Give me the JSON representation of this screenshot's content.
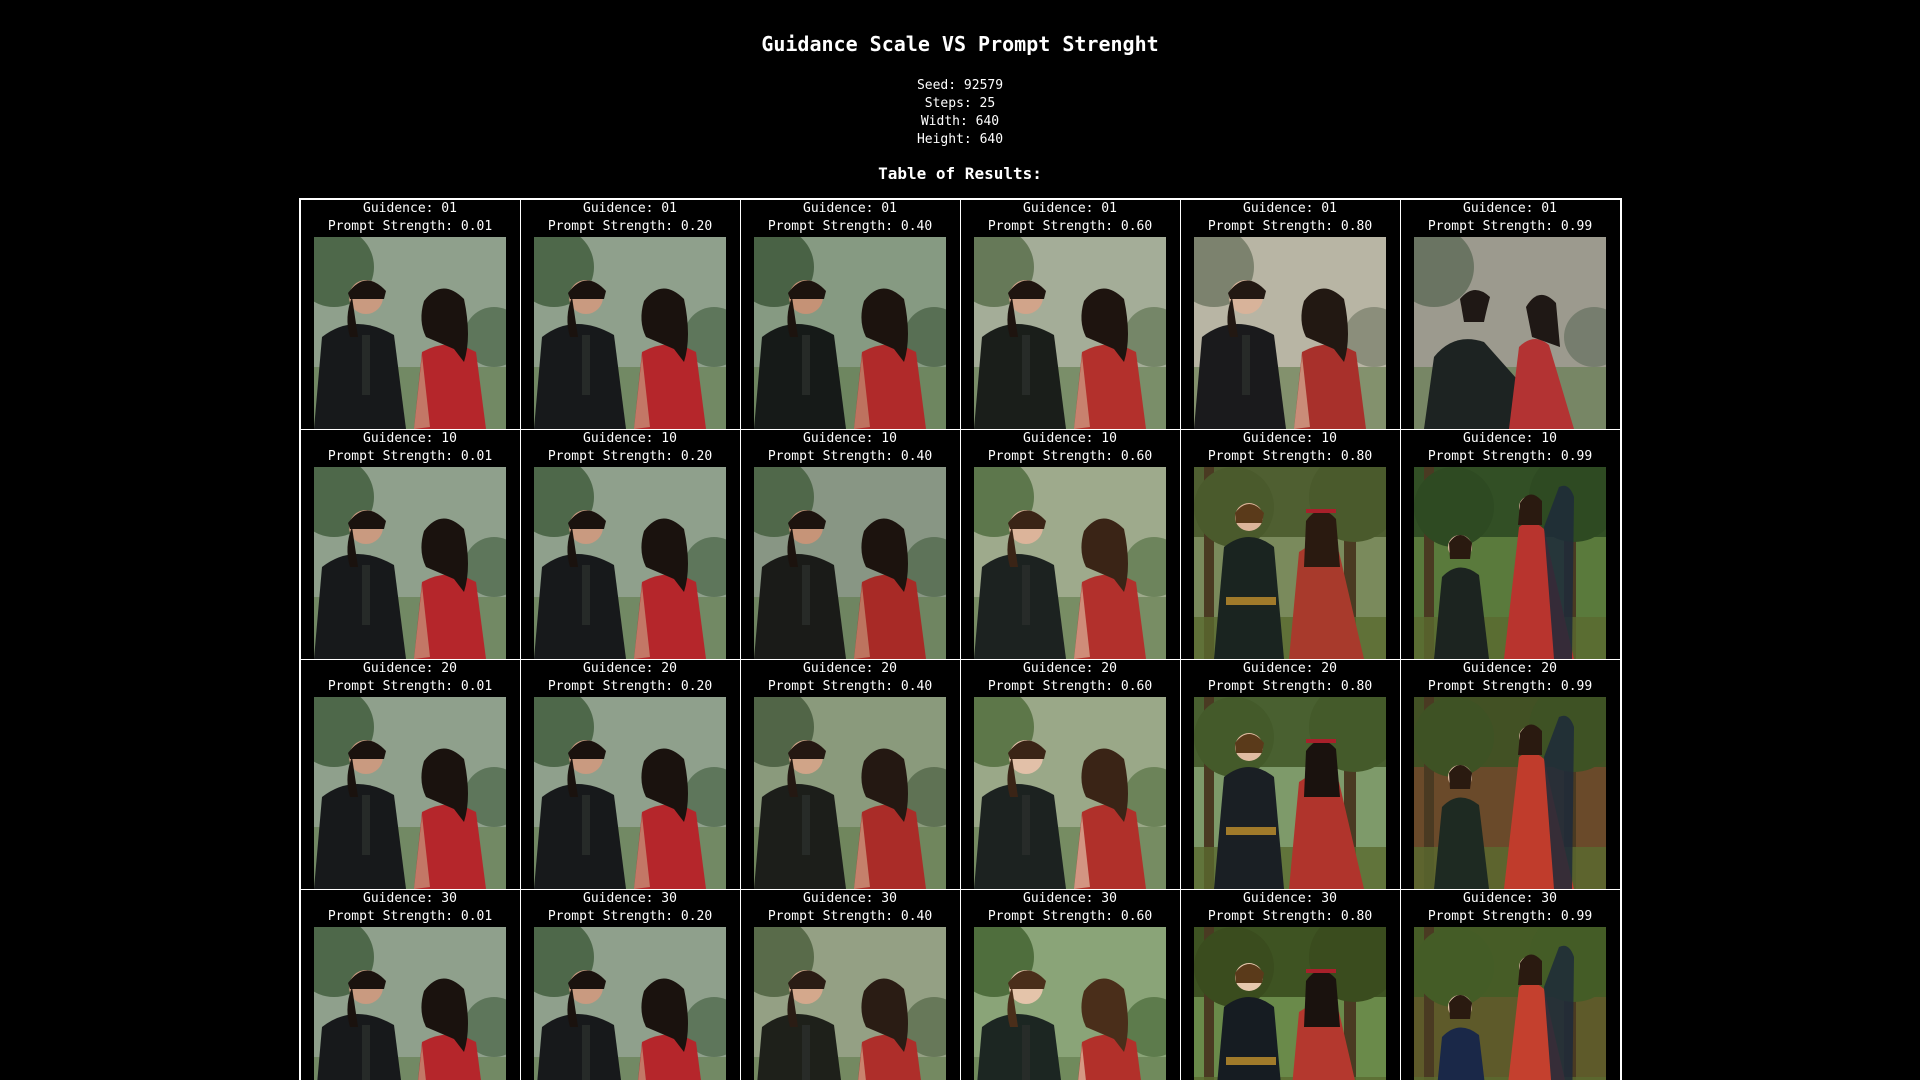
{
  "title": "Guidance Scale VS Prompt Strenght",
  "meta": {
    "seed": "Seed: 92579",
    "steps": "Steps: 25",
    "width": "Width: 640",
    "height": "Height: 640"
  },
  "table_title": "Table of Results:",
  "rows": [
    {
      "guidance_label": "Guidence: 01",
      "cells": [
        {
          "prompt_label": "Prompt Strength: 0.01",
          "style": "photo",
          "bg": "#8fa08c",
          "trees": "#3d5a3a",
          "man_coat": "#17191b",
          "dress": "#b5262b",
          "skin": "#c99a80",
          "hair": "#1a120e"
        },
        {
          "prompt_label": "Prompt Strength: 0.20",
          "style": "photo",
          "bg": "#8fa08c",
          "trees": "#3d5a3a",
          "man_coat": "#17191b",
          "dress": "#b5262b",
          "skin": "#c99a80",
          "hair": "#1a120e"
        },
        {
          "prompt_label": "Prompt Strength: 0.40",
          "style": "photo",
          "bg": "#869a82",
          "trees": "#3a5436",
          "man_coat": "#161a18",
          "dress": "#b02a2a",
          "skin": "#c59276",
          "hair": "#1c130e"
        },
        {
          "prompt_label": "Prompt Strength: 0.60",
          "style": "photo",
          "bg": "#a4ad98",
          "trees": "#566c48",
          "man_coat": "#1a1e1a",
          "dress": "#b3302c",
          "skin": "#d1a48a",
          "hair": "#1e140f"
        },
        {
          "prompt_label": "Prompt Strength: 0.80",
          "style": "painted",
          "bg": "#b8b5a4",
          "trees": "#6d7560",
          "man_coat": "#1a1a1c",
          "dress": "#a8302b",
          "skin": "#d8b39a",
          "hair": "#221812"
        },
        {
          "prompt_label": "Prompt Strength: 0.99",
          "style": "seated",
          "bg": "#9c9a8e",
          "trees": "#5e6a58",
          "man_coat": "#1d2322",
          "dress": "#b33333",
          "skin": "#d3ad96",
          "hair": "#1f1815"
        }
      ]
    },
    {
      "guidance_label": "Guidence: 10",
      "cells": [
        {
          "prompt_label": "Prompt Strength: 0.01",
          "style": "photo",
          "bg": "#8fa08c",
          "trees": "#3d5a3a",
          "man_coat": "#17191b",
          "dress": "#b5262b",
          "skin": "#c99a80",
          "hair": "#1a120e"
        },
        {
          "prompt_label": "Prompt Strength: 0.20",
          "style": "photo",
          "bg": "#8fa08c",
          "trees": "#3d5a3a",
          "man_coat": "#17191b",
          "dress": "#b5262b",
          "skin": "#c99a80",
          "hair": "#1a120e"
        },
        {
          "prompt_label": "Prompt Strength: 0.40",
          "style": "photo",
          "bg": "#889684",
          "trees": "#425c3c",
          "man_coat": "#1a1b18",
          "dress": "#a82a26",
          "skin": "#c69478",
          "hair": "#1c130e"
        },
        {
          "prompt_label": "Prompt Strength: 0.60",
          "style": "painted",
          "bg": "#9eaa8c",
          "trees": "#4c6a3c",
          "man_coat": "#1c2220",
          "dress": "#b2302c",
          "skin": "#dcb49a",
          "hair": "#3a2416"
        },
        {
          "prompt_label": "Prompt Strength: 0.80",
          "style": "forest",
          "bg": "#7a8a5c",
          "trees": "#4a5a2c",
          "man_coat": "#1a2420",
          "dress": "#a83a2c",
          "skin": "#dcb49a",
          "hair": "#2a1a10"
        },
        {
          "prompt_label": "Prompt Strength: 0.99",
          "style": "standing",
          "bg": "#5a7a3c",
          "trees": "#2e4a22",
          "man_coat": "#1c2420",
          "dress": "#b8342e",
          "skin": "#e0bca2",
          "hair": "#2a1a10"
        }
      ]
    },
    {
      "guidance_label": "Guidence: 20",
      "cells": [
        {
          "prompt_label": "Prompt Strength: 0.01",
          "style": "photo",
          "bg": "#8fa08c",
          "trees": "#3d5a3a",
          "man_coat": "#17191b",
          "dress": "#b5262b",
          "skin": "#c99a80",
          "hair": "#1a120e"
        },
        {
          "prompt_label": "Prompt Strength: 0.20",
          "style": "photo",
          "bg": "#8fa08c",
          "trees": "#3d5a3a",
          "man_coat": "#17191b",
          "dress": "#b5262b",
          "skin": "#c99a80",
          "hair": "#1a120e"
        },
        {
          "prompt_label": "Prompt Strength: 0.40",
          "style": "photo",
          "bg": "#8a9a7c",
          "trees": "#42583a",
          "man_coat": "#1c1e1a",
          "dress": "#aa2c28",
          "skin": "#d0a488",
          "hair": "#241812"
        },
        {
          "prompt_label": "Prompt Strength: 0.60",
          "style": "painted",
          "bg": "#9aa888",
          "trees": "#4e6a3a",
          "man_coat": "#1c2220",
          "dress": "#b0302a",
          "skin": "#e2c0a8",
          "hair": "#3a2416"
        },
        {
          "prompt_label": "Prompt Strength: 0.80",
          "style": "forest",
          "bg": "#7e9a6a",
          "trees": "#445a2a",
          "man_coat": "#1a1f24",
          "dress": "#b0342c",
          "skin": "#e0bca2",
          "hair": "#1a120e"
        },
        {
          "prompt_label": "Prompt Strength: 0.99",
          "style": "standing",
          "bg": "#6a4a2a",
          "trees": "#3e5224",
          "man_coat": "#1e2a22",
          "dress": "#c03c2c",
          "skin": "#e6c6aa",
          "hair": "#2a1a10"
        }
      ]
    },
    {
      "guidance_label": "Guidence: 30",
      "cells": [
        {
          "prompt_label": "Prompt Strength: 0.01",
          "style": "photo",
          "bg": "#8fa08c",
          "trees": "#3d5a3a",
          "man_coat": "#17191b",
          "dress": "#b5262b",
          "skin": "#c99a80",
          "hair": "#1a120e"
        },
        {
          "prompt_label": "Prompt Strength: 0.20",
          "style": "photo",
          "bg": "#8fa08c",
          "trees": "#3d5a3a",
          "man_coat": "#17191b",
          "dress": "#b5262b",
          "skin": "#c99a80",
          "hair": "#1a120e"
        },
        {
          "prompt_label": "Prompt Strength: 0.40",
          "style": "photo",
          "bg": "#94a084",
          "trees": "#4a5e3c",
          "man_coat": "#1e201a",
          "dress": "#ae2e2a",
          "skin": "#d4a88c",
          "hair": "#2a1c14"
        },
        {
          "prompt_label": "Prompt Strength: 0.60",
          "style": "painted",
          "bg": "#8aa478",
          "trees": "#40602e",
          "man_coat": "#1c2622",
          "dress": "#b2302a",
          "skin": "#e4c4aa",
          "hair": "#4a2e1a"
        },
        {
          "prompt_label": "Prompt Strength: 0.80",
          "style": "forest",
          "bg": "#6a8a4a",
          "trees": "#3a4c1e",
          "man_coat": "#161c22",
          "dress": "#b4382e",
          "skin": "#e6c8ae",
          "hair": "#1a120e"
        },
        {
          "prompt_label": "Prompt Strength: 0.99",
          "style": "standing",
          "bg": "#5e5a2a",
          "trees": "#445c26",
          "man_coat": "#1a2848",
          "dress": "#c4402e",
          "skin": "#e8caae",
          "hair": "#2a1a10"
        }
      ]
    }
  ]
}
